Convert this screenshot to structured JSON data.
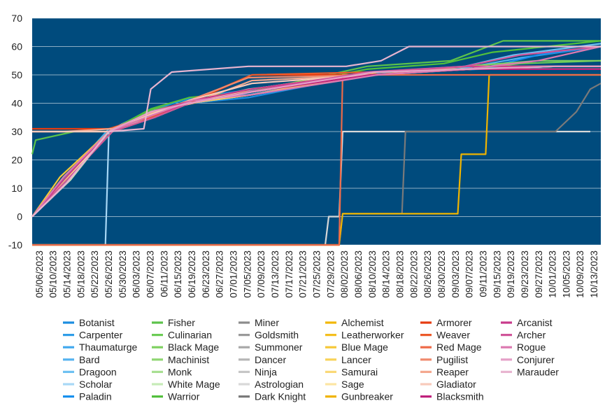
{
  "chart_data": {
    "type": "line",
    "title": "",
    "xlabel": "",
    "ylabel": "",
    "ylim": [
      -10,
      70
    ],
    "yticks": [
      -10,
      0,
      10,
      20,
      30,
      40,
      50,
      60,
      70
    ],
    "xlim": [
      0,
      163
    ],
    "xticks": [
      "05/06/2023",
      "05/10/2023",
      "05/14/2023",
      "05/18/2023",
      "05/22/2023",
      "05/26/2023",
      "05/30/2023",
      "06/03/2023",
      "06/07/2023",
      "06/11/2023",
      "06/15/2023",
      "06/19/2023",
      "06/23/2023",
      "06/27/2023",
      "07/01/2023",
      "07/05/2023",
      "07/09/2023",
      "07/13/2023",
      "07/17/2023",
      "07/21/2023",
      "07/25/2023",
      "07/29/2023",
      "08/02/2023",
      "08/06/2023",
      "08/10/2023",
      "08/14/2023",
      "08/18/2023",
      "08/22/2023",
      "08/26/2023",
      "08/30/2023",
      "09/03/2023",
      "09/07/2023",
      "09/11/2023",
      "09/15/2023",
      "09/19/2023",
      "09/23/2023",
      "09/27/2023",
      "10/01/2023",
      "10/05/2023",
      "10/09/2023",
      "10/13/2023"
    ],
    "x_unit": "days since 05/06/2023",
    "plot_background": "#004b7d",
    "grid": true,
    "legend_position": "bottom",
    "series": [
      {
        "name": "Botanist",
        "color": "#1c8de0",
        "x": [
          0,
          8,
          22,
          35,
          45,
          62,
          95,
          125,
          150,
          163
        ],
        "values": [
          0,
          12,
          30,
          35,
          40,
          42,
          50,
          52,
          53,
          53
        ]
      },
      {
        "name": "Carpenter",
        "color": "#2f9de8",
        "x": [
          0,
          10,
          22,
          35,
          45,
          62,
          96,
          126,
          150,
          163
        ],
        "values": [
          0,
          13,
          30,
          36,
          41,
          43,
          50,
          53,
          52,
          52
        ]
      },
      {
        "name": "Thaumaturge",
        "color": "#41a9ef",
        "x": [
          0,
          9,
          22,
          35,
          45,
          63,
          97,
          123,
          148,
          163
        ],
        "values": [
          0,
          13,
          31,
          36,
          40,
          44,
          51,
          52,
          53,
          53
        ]
      },
      {
        "name": "Bard",
        "color": "#55b3f0",
        "x": [
          0,
          10,
          23,
          35,
          45,
          63,
          98,
          122,
          140,
          163
        ],
        "values": [
          0,
          14,
          30,
          37,
          41,
          44,
          50,
          52,
          56,
          60
        ]
      },
      {
        "name": "Dragoon",
        "color": "#6ec1f2",
        "x": [
          0,
          9,
          23,
          34,
          46,
          63,
          99,
          124,
          138,
          163
        ],
        "values": [
          0,
          12,
          30,
          36,
          41,
          45,
          51,
          53,
          57,
          61
        ]
      },
      {
        "name": "Scholar",
        "color": "#a8d8f6",
        "x": [
          0,
          21,
          22,
          23,
          33,
          46,
          64,
          100,
          127,
          163
        ],
        "values": [
          -10,
          -10,
          30,
          31,
          37,
          40,
          45,
          51,
          52,
          52
        ]
      },
      {
        "name": "Paladin",
        "color": "#1890ee",
        "x": [
          0,
          10,
          22,
          35,
          46,
          64,
          100,
          128,
          145,
          163
        ],
        "values": [
          0,
          12,
          30,
          38,
          42,
          45,
          51,
          52,
          57,
          60
        ]
      },
      {
        "name": "Fisher",
        "color": "#5cc24a",
        "x": [
          0,
          1,
          12,
          22,
          35,
          45,
          63,
          96,
          120,
          135,
          163
        ],
        "values": [
          22,
          27,
          30,
          30,
          38,
          40,
          44,
          53,
          55,
          62,
          62
        ]
      },
      {
        "name": "Culinarian",
        "color": "#6bcc55",
        "x": [
          0,
          10,
          23,
          35,
          45,
          63,
          97,
          124,
          140,
          163
        ],
        "values": [
          0,
          14,
          30,
          37,
          41,
          44,
          51,
          52,
          54,
          55
        ]
      },
      {
        "name": "Black Mage",
        "color": "#7ed160",
        "x": [
          0,
          9,
          23,
          34,
          46,
          63,
          98,
          124,
          145,
          163
        ],
        "values": [
          0,
          12,
          30,
          37,
          41,
          45,
          50,
          53,
          55,
          55
        ]
      },
      {
        "name": "Machinist",
        "color": "#8fd672",
        "x": [
          0,
          10,
          22,
          35,
          45,
          63,
          97,
          125,
          150,
          163
        ],
        "values": [
          0,
          13,
          30,
          35,
          40,
          44,
          51,
          52,
          53,
          53
        ]
      },
      {
        "name": "Monk",
        "color": "#a8df92",
        "x": [
          0,
          10,
          22,
          34,
          46,
          63,
          98,
          123,
          150,
          163
        ],
        "values": [
          0,
          12,
          30,
          36,
          41,
          44,
          50,
          52,
          52,
          52
        ]
      },
      {
        "name": "White Mage",
        "color": "#c6ebb8",
        "x": [
          0,
          11,
          22,
          35,
          45,
          63,
          99,
          126,
          150,
          163
        ],
        "values": [
          0,
          13,
          30,
          36,
          40,
          43,
          51,
          52,
          53,
          53
        ]
      },
      {
        "name": "Warrior",
        "color": "#52c03c",
        "x": [
          0,
          9,
          22,
          34,
          45,
          62,
          96,
          118,
          132,
          163
        ],
        "values": [
          0,
          14,
          30,
          38,
          42,
          44,
          52,
          54,
          58,
          62
        ]
      },
      {
        "name": "Miner",
        "color": "#8c8c8c",
        "x": [
          0,
          10,
          22,
          35,
          45,
          63,
          97,
          126,
          150,
          163
        ],
        "values": [
          0,
          13,
          30,
          35,
          40,
          43,
          50,
          52,
          52,
          52
        ]
      },
      {
        "name": "Goldsmith",
        "color": "#9a9a9a",
        "x": [
          0,
          9,
          22,
          34,
          46,
          63,
          98,
          125,
          150,
          163
        ],
        "values": [
          0,
          12,
          30,
          36,
          41,
          44,
          51,
          53,
          53,
          53
        ]
      },
      {
        "name": "Summoner",
        "color": "#a8a8a8",
        "x": [
          0,
          10,
          23,
          35,
          45,
          62,
          97,
          123,
          150,
          163
        ],
        "values": [
          0,
          14,
          30,
          37,
          40,
          45,
          50,
          52,
          52,
          52
        ]
      },
      {
        "name": "Dancer",
        "color": "#b6b6b6",
        "x": [
          0,
          9,
          22,
          35,
          46,
          63,
          99,
          124,
          150,
          163
        ],
        "values": [
          0,
          13,
          30,
          36,
          41,
          44,
          51,
          52,
          53,
          53
        ]
      },
      {
        "name": "Ninja",
        "color": "#c6c6c6",
        "x": [
          0,
          10,
          22,
          34,
          45,
          63,
          98,
          126,
          150,
          163
        ],
        "values": [
          0,
          12,
          30,
          35,
          40,
          43,
          50,
          52,
          52,
          52
        ]
      },
      {
        "name": "Astrologian",
        "color": "#d8d8d8",
        "x": [
          0,
          84,
          85,
          88,
          89,
          100,
          101,
          160
        ],
        "values": [
          -10,
          -10,
          0,
          0,
          30,
          30,
          30,
          30
        ]
      },
      {
        "name": "Dark Knight",
        "color": "#7a7a7a",
        "x": [
          0,
          88,
          89,
          106,
          107,
          130,
          131,
          150,
          156,
          160,
          163
        ],
        "values": [
          -10,
          -10,
          1,
          1,
          30,
          30,
          30,
          30,
          37,
          45,
          47
        ]
      },
      {
        "name": "Alchemist",
        "color": "#f2b705",
        "x": [
          0,
          10,
          22,
          35,
          45,
          63,
          96,
          126,
          150,
          163
        ],
        "values": [
          0,
          13,
          30,
          36,
          41,
          44,
          50,
          52,
          52,
          52
        ]
      },
      {
        "name": "Leatherworker",
        "color": "#f4bf1e",
        "x": [
          0,
          9,
          22,
          35,
          46,
          63,
          97,
          125,
          150,
          163
        ],
        "values": [
          0,
          12,
          30,
          37,
          40,
          45,
          51,
          53,
          53,
          53
        ]
      },
      {
        "name": "Blue Mage",
        "color": "#f6c838",
        "x": [
          0,
          8,
          22,
          34,
          45,
          62,
          98,
          124,
          150,
          163
        ],
        "values": [
          0,
          14,
          30,
          36,
          41,
          44,
          50,
          52,
          52,
          52
        ]
      },
      {
        "name": "Lancer",
        "color": "#f8d258",
        "x": [
          0,
          10,
          23,
          35,
          45,
          63,
          99,
          125,
          150,
          163
        ],
        "values": [
          0,
          13,
          30,
          35,
          40,
          43,
          51,
          53,
          53,
          53
        ]
      },
      {
        "name": "Samurai",
        "color": "#fad977",
        "x": [
          0,
          9,
          22,
          34,
          46,
          63,
          98,
          123,
          150,
          163
        ],
        "values": [
          0,
          12,
          30,
          36,
          41,
          44,
          50,
          52,
          52,
          52
        ]
      },
      {
        "name": "Sage",
        "color": "#fce5a3",
        "x": [
          0,
          10,
          22,
          35,
          45,
          63,
          97,
          126,
          150,
          163
        ],
        "values": [
          0,
          13,
          30,
          37,
          40,
          45,
          51,
          52,
          52,
          52
        ]
      },
      {
        "name": "Gunbreaker",
        "color": "#f0b400",
        "x": [
          0,
          88,
          89,
          108,
          109,
          122,
          123,
          130,
          131,
          163
        ],
        "values": [
          -10,
          -10,
          1,
          1,
          1,
          1,
          22,
          22,
          50,
          50
        ]
      },
      {
        "name": "Armorer",
        "color": "#e63c10",
        "x": [
          0,
          10,
          22,
          35,
          45,
          63,
          96,
          126,
          150,
          163
        ],
        "values": [
          31,
          31,
          31,
          36,
          40,
          50,
          50,
          52,
          52,
          52
        ]
      },
      {
        "name": "Weaver",
        "color": "#ec5a2a",
        "x": [
          0,
          9,
          22,
          34,
          46,
          63,
          97,
          125,
          150,
          163
        ],
        "values": [
          30,
          30,
          31,
          35,
          41,
          50,
          51,
          52,
          52,
          52
        ]
      },
      {
        "name": "Red Mage",
        "color": "#ee6a48",
        "x": [
          0,
          88,
          89,
          90,
          91,
          163
        ],
        "values": [
          -10,
          -10,
          50,
          50,
          50,
          50
        ]
      },
      {
        "name": "Pugilist",
        "color": "#f08a6e",
        "x": [
          0,
          9,
          22,
          35,
          45,
          62,
          98,
          124,
          150,
          163
        ],
        "values": [
          30,
          30,
          30,
          36,
          41,
          49,
          50,
          52,
          52,
          52
        ]
      },
      {
        "name": "Reaper",
        "color": "#f4a88f",
        "x": [
          0,
          10,
          23,
          35,
          46,
          63,
          99,
          125,
          150,
          163
        ],
        "values": [
          30,
          30,
          31,
          37,
          40,
          48,
          50,
          53,
          53,
          53
        ]
      },
      {
        "name": "Gladiator",
        "color": "#f8cabb",
        "x": [
          0,
          9,
          22,
          34,
          45,
          63,
          97,
          123,
          150,
          163
        ],
        "values": [
          30,
          30,
          30,
          36,
          41,
          47,
          50,
          52,
          52,
          52
        ]
      },
      {
        "name": "Blacksmith",
        "color": "#c0217c",
        "x": [
          0,
          10,
          22,
          35,
          45,
          63,
          97,
          126,
          150,
          163
        ],
        "values": [
          0,
          12,
          30,
          36,
          40,
          44,
          50,
          52,
          52,
          52
        ]
      },
      {
        "name": "Arcanist",
        "color": "#c83a8b",
        "x": [
          0,
          9,
          22,
          34,
          46,
          63,
          98,
          125,
          150,
          163
        ],
        "values": [
          0,
          13,
          30,
          37,
          41,
          45,
          51,
          53,
          53,
          53
        ]
      },
      {
        "name": "Archer",
        "color": "#d05599",
        "x": [
          0,
          10,
          23,
          35,
          45,
          62,
          96,
          124,
          140,
          163
        ],
        "values": [
          0,
          13,
          30,
          35,
          40,
          44,
          51,
          53,
          57,
          60
        ]
      },
      {
        "name": "Rogue",
        "color": "#dc7ab1",
        "x": [
          0,
          9,
          22,
          35,
          46,
          63,
          99,
          124,
          145,
          163
        ],
        "values": [
          0,
          14,
          30,
          36,
          41,
          43,
          50,
          52,
          55,
          60
        ]
      },
      {
        "name": "Conjurer",
        "color": "#e5a0c8",
        "x": [
          0,
          10,
          22,
          34,
          45,
          63,
          98,
          125,
          150,
          163
        ],
        "values": [
          0,
          12,
          30,
          37,
          40,
          44,
          51,
          52,
          53,
          53
        ]
      },
      {
        "name": "Marauder",
        "color": "#e8b5d0",
        "x": [
          0,
          10,
          22,
          32,
          34,
          40,
          62,
          90,
          100,
          108,
          163
        ],
        "values": [
          0,
          12,
          30,
          31,
          45,
          51,
          53,
          53,
          55,
          60,
          60
        ]
      }
    ]
  }
}
